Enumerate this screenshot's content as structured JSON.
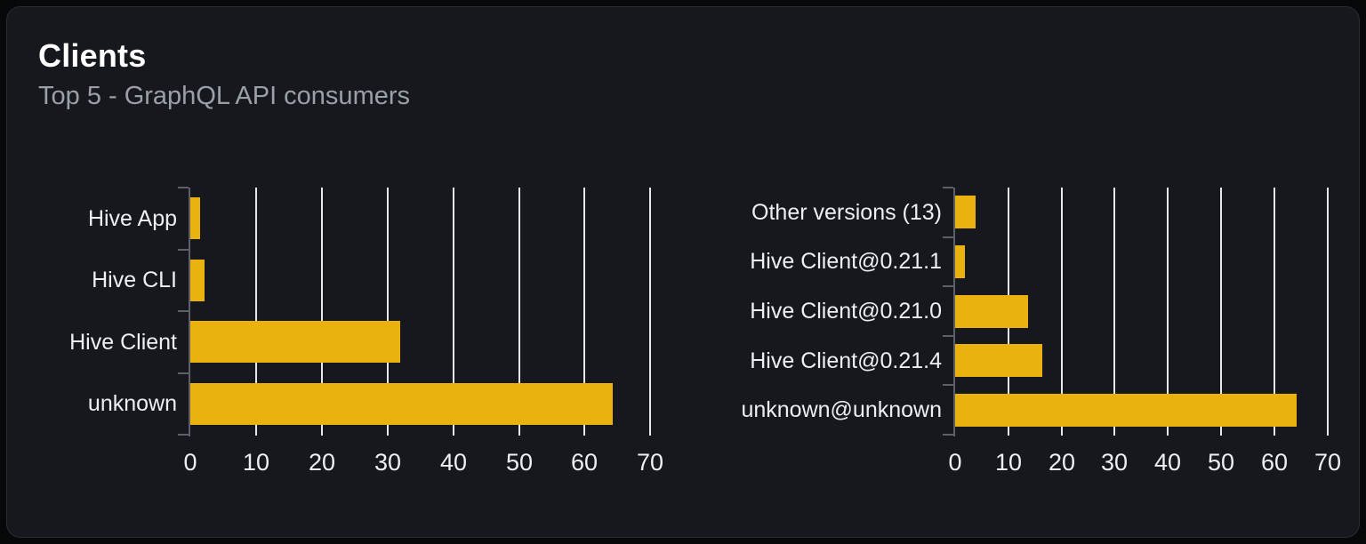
{
  "card": {
    "title": "Clients",
    "subtitle": "Top 5 - GraphQL API consumers"
  },
  "colors": {
    "page_bg": "#070809",
    "card_bg": "#16181d",
    "card_border": "#2a2d34",
    "title": "#ffffff",
    "subtitle": "#9aa0a8",
    "bar": "#e9b20e",
    "grid": "#e5e8ec",
    "axis": "#5c6169",
    "text": "#edeff2"
  },
  "chart_data": [
    {
      "type": "bar",
      "orientation": "horizontal",
      "title": "",
      "categories": [
        "Hive App",
        "Hive CLI",
        "Hive Client",
        "unknown"
      ],
      "values": [
        1.5,
        2.1,
        32,
        64.3
      ],
      "xlim": [
        0,
        70
      ],
      "xticks": [
        0,
        10,
        20,
        30,
        40,
        50,
        60,
        70
      ],
      "grid": true,
      "legend": "none"
    },
    {
      "type": "bar",
      "orientation": "horizontal",
      "title": "",
      "categories": [
        "Other versions (13)",
        "Hive Client@0.21.1",
        "Hive Client@0.21.0",
        "Hive Client@0.21.4",
        "unknown@unknown"
      ],
      "values": [
        3.8,
        1.8,
        13.7,
        16.4,
        64.2
      ],
      "xlim": [
        0,
        70
      ],
      "xticks": [
        0,
        10,
        20,
        30,
        40,
        50,
        60,
        70
      ],
      "grid": true,
      "legend": "none"
    }
  ]
}
